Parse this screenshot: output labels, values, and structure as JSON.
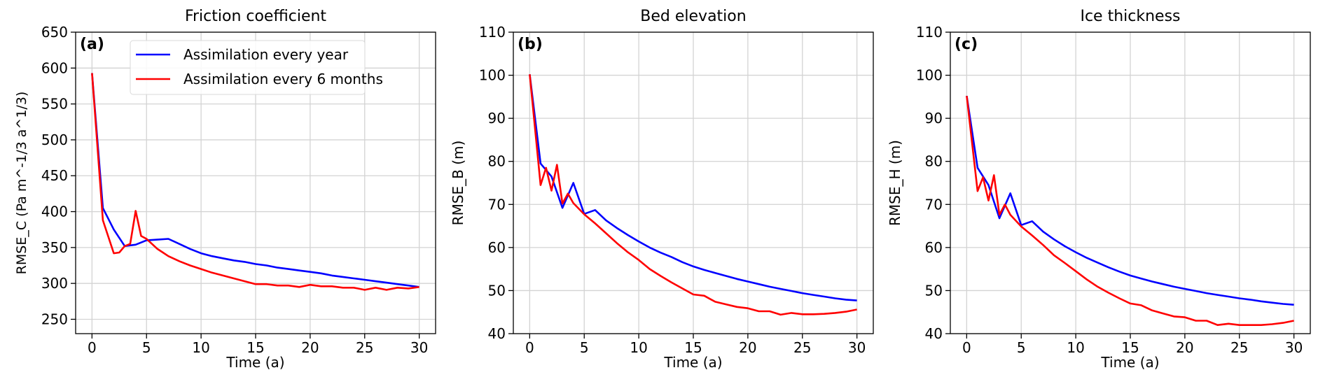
{
  "colors": {
    "yearly": "#0000ff",
    "six_months": "#ff0000",
    "grid": "#d3d3d3"
  },
  "legend": {
    "placement": "top-right of panel (a)",
    "entries": [
      "Assimilation every year",
      "Assimilation every 6 months"
    ]
  },
  "chart_data": [
    {
      "type": "line",
      "panel": "(a)",
      "title": "Friction coefficient",
      "xlabel": "Time (a)",
      "ylabel": "RMSE_C (Pa m^-1/3 a^1/3)",
      "ylabel_parts": {
        "main": "RMSE_C (",
        "unit1": "Pa m",
        "exp1": "−1/3",
        "unit2": " a",
        "exp2": "1/3",
        "close": ")"
      },
      "xlim": [
        -1.5,
        31.5
      ],
      "ylim": [
        230,
        650
      ],
      "xticks": [
        0,
        5,
        10,
        15,
        20,
        25,
        30
      ],
      "yticks": [
        250,
        300,
        350,
        400,
        450,
        500,
        550,
        600,
        650
      ],
      "grid": true,
      "series": [
        {
          "name": "Assimilation every year",
          "color": "#0000ff",
          "x": [
            0,
            1,
            2,
            3,
            4,
            5,
            6,
            7,
            8,
            9,
            10,
            11,
            12,
            13,
            14,
            15,
            16,
            17,
            18,
            19,
            20,
            21,
            22,
            23,
            24,
            25,
            26,
            27,
            28,
            29,
            30
          ],
          "y": [
            593,
            405,
            375,
            352,
            354,
            360,
            361,
            362,
            355,
            348,
            342,
            338,
            335,
            332,
            330,
            327,
            325,
            322,
            320,
            318,
            316,
            314,
            311,
            309,
            307,
            305,
            303,
            301,
            299,
            297,
            295
          ]
        },
        {
          "name": "Assimilation every 6 months",
          "color": "#ff0000",
          "x": [
            0,
            1,
            1.5,
            2,
            2.5,
            3,
            3.5,
            4,
            4.5,
            5,
            5.5,
            6,
            6.5,
            7,
            8,
            9,
            10,
            11,
            12,
            13,
            14,
            15,
            16,
            17,
            18,
            19,
            20,
            21,
            22,
            23,
            24,
            25,
            26,
            27,
            28,
            29,
            30
          ],
          "y": [
            593,
            388,
            365,
            342,
            343,
            352,
            355,
            401,
            366,
            362,
            355,
            348,
            343,
            338,
            331,
            325,
            320,
            315,
            311,
            307,
            303,
            299,
            299,
            297,
            297,
            295,
            298,
            296,
            296,
            294,
            294,
            291,
            294,
            291,
            294,
            293,
            295
          ]
        }
      ]
    },
    {
      "type": "line",
      "panel": "(b)",
      "title": "Bed elevation",
      "xlabel": "Time (a)",
      "ylabel": "RMSE_B (m)",
      "xlim": [
        -1.5,
        31.5
      ],
      "ylim": [
        40,
        110
      ],
      "xticks": [
        0,
        5,
        10,
        15,
        20,
        25,
        30
      ],
      "yticks": [
        40,
        50,
        60,
        70,
        80,
        90,
        100,
        110
      ],
      "grid": true,
      "series": [
        {
          "name": "Assimilation every year",
          "color": "#0000ff",
          "x": [
            0,
            1,
            2,
            3,
            4,
            5,
            6,
            7,
            8,
            9,
            10,
            11,
            12,
            13,
            14,
            15,
            16,
            17,
            18,
            19,
            20,
            21,
            22,
            23,
            24,
            25,
            26,
            27,
            28,
            29,
            30
          ],
          "y": [
            100.2,
            79.5,
            76.5,
            69.2,
            75,
            67.8,
            68.7,
            66.3,
            64.5,
            62.9,
            61.4,
            60.0,
            58.8,
            57.8,
            56.6,
            55.6,
            54.8,
            54.1,
            53.4,
            52.7,
            52.1,
            51.5,
            50.9,
            50.4,
            49.9,
            49.4,
            49.0,
            48.6,
            48.2,
            47.9,
            47.7
          ]
        },
        {
          "name": "Assimilation every 6 months",
          "color": "#ff0000",
          "x": [
            0,
            1,
            1.5,
            2,
            2.5,
            3,
            3.5,
            4,
            5,
            6,
            7,
            8,
            9,
            10,
            11,
            12,
            13,
            14,
            15,
            16,
            17,
            18,
            19,
            20,
            21,
            22,
            23,
            24,
            25,
            26,
            27,
            28,
            29,
            30
          ],
          "y": [
            100.2,
            74.5,
            78.5,
            73.2,
            79.2,
            70.2,
            72.5,
            70.3,
            67.7,
            65.6,
            63.3,
            61.0,
            58.9,
            57.1,
            55.0,
            53.4,
            51.9,
            50.5,
            49.1,
            48.8,
            47.4,
            46.8,
            46.2,
            45.9,
            45.2,
            45.2,
            44.4,
            44.8,
            44.5,
            44.5,
            44.6,
            44.8,
            45.1,
            45.6
          ]
        }
      ]
    },
    {
      "type": "line",
      "panel": "(c)",
      "title": "Ice thickness",
      "xlabel": "Time (a)",
      "ylabel": "RMSE_H (m)",
      "xlim": [
        -1.5,
        31.5
      ],
      "ylim": [
        40,
        110
      ],
      "xticks": [
        0,
        5,
        10,
        15,
        20,
        25,
        30
      ],
      "yticks": [
        40,
        50,
        60,
        70,
        80,
        90,
        100,
        110
      ],
      "grid": true,
      "series": [
        {
          "name": "Assimilation every year",
          "color": "#0000ff",
          "x": [
            0,
            1,
            2,
            3,
            4,
            5,
            6,
            7,
            8,
            9,
            10,
            11,
            12,
            13,
            14,
            15,
            16,
            17,
            18,
            19,
            20,
            21,
            22,
            23,
            24,
            25,
            26,
            27,
            28,
            29,
            30
          ],
          "y": [
            95.2,
            78.5,
            74.5,
            66.8,
            72.6,
            65.2,
            66.1,
            63.7,
            61.9,
            60.3,
            58.9,
            57.6,
            56.5,
            55.4,
            54.4,
            53.5,
            52.8,
            52.1,
            51.5,
            50.9,
            50.4,
            49.9,
            49.4,
            49.0,
            48.6,
            48.2,
            47.9,
            47.5,
            47.2,
            46.9,
            46.7
          ]
        },
        {
          "name": "Assimilation every 6 months",
          "color": "#ff0000",
          "x": [
            0,
            1,
            1.5,
            2,
            2.5,
            3,
            3.5,
            4,
            5,
            6,
            7,
            8,
            9,
            10,
            11,
            12,
            13,
            14,
            15,
            16,
            17,
            18,
            19,
            20,
            21,
            22,
            23,
            24,
            25,
            26,
            27,
            28,
            29,
            30
          ],
          "y": [
            95.2,
            73.1,
            76.3,
            70.9,
            76.8,
            67.6,
            70.0,
            67.6,
            64.9,
            62.8,
            60.6,
            58.2,
            56.4,
            54.5,
            52.6,
            50.9,
            49.5,
            48.2,
            47.0,
            46.6,
            45.4,
            44.7,
            44.0,
            43.8,
            43.0,
            43.0,
            42.0,
            42.3,
            42.0,
            42.0,
            42.0,
            42.2,
            42.5,
            43.0
          ]
        }
      ]
    }
  ]
}
